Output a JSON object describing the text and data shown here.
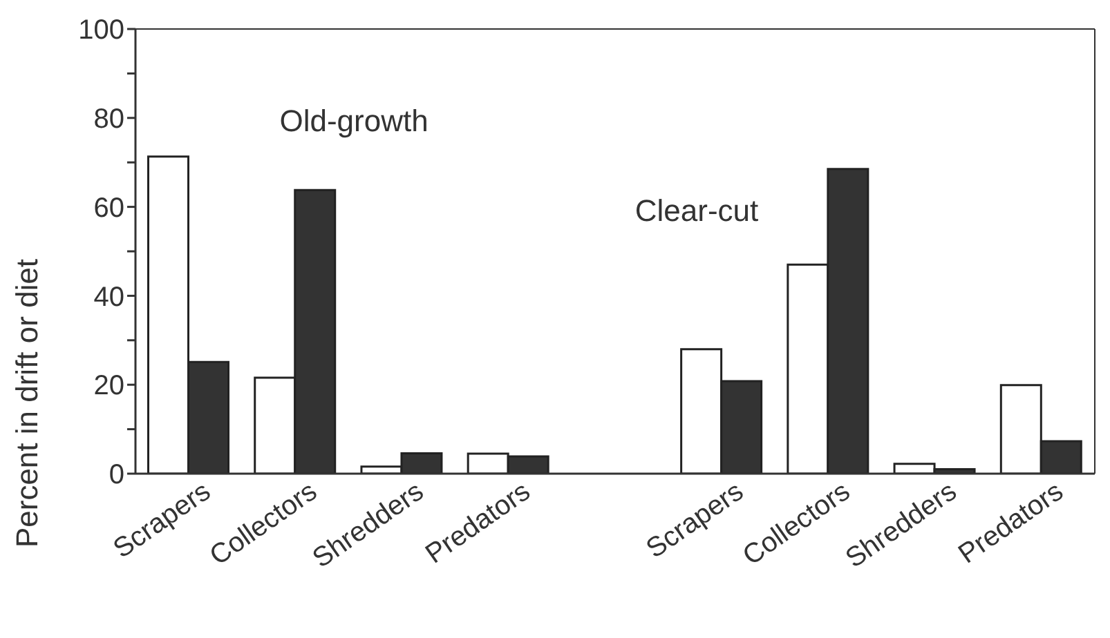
{
  "chart_data": {
    "type": "bar",
    "categories": [
      "Scrapers",
      "Collectors",
      "Shredders",
      "Predators",
      null,
      "Scrapers",
      "Collectors",
      "Shredders",
      "Predators"
    ],
    "series": [
      {
        "color": "#ffffff",
        "values": [
          71.3,
          21.6,
          1.6,
          4.5,
          null,
          28,
          47,
          2.2,
          19.9
        ]
      },
      {
        "color": "#333333",
        "values": [
          25.1,
          63.8,
          4.6,
          3.9,
          null,
          20.8,
          68.5,
          1.0,
          7.3
        ]
      }
    ],
    "ylabel": "Percent in drift or diet",
    "ylim": [
      0,
      100
    ],
    "yticks": [
      0,
      {
        "value": 10,
        "label": null
      },
      20,
      {
        "value": 30,
        "label": null
      },
      40,
      {
        "value": 50,
        "label": null
      },
      60,
      {
        "value": 70,
        "label": null
      },
      80,
      {
        "value": 90,
        "label": null
      },
      100
    ],
    "annotations": [
      "Old-growth",
      "Clear-cut"
    ],
    "grid": false,
    "legend": false
  }
}
